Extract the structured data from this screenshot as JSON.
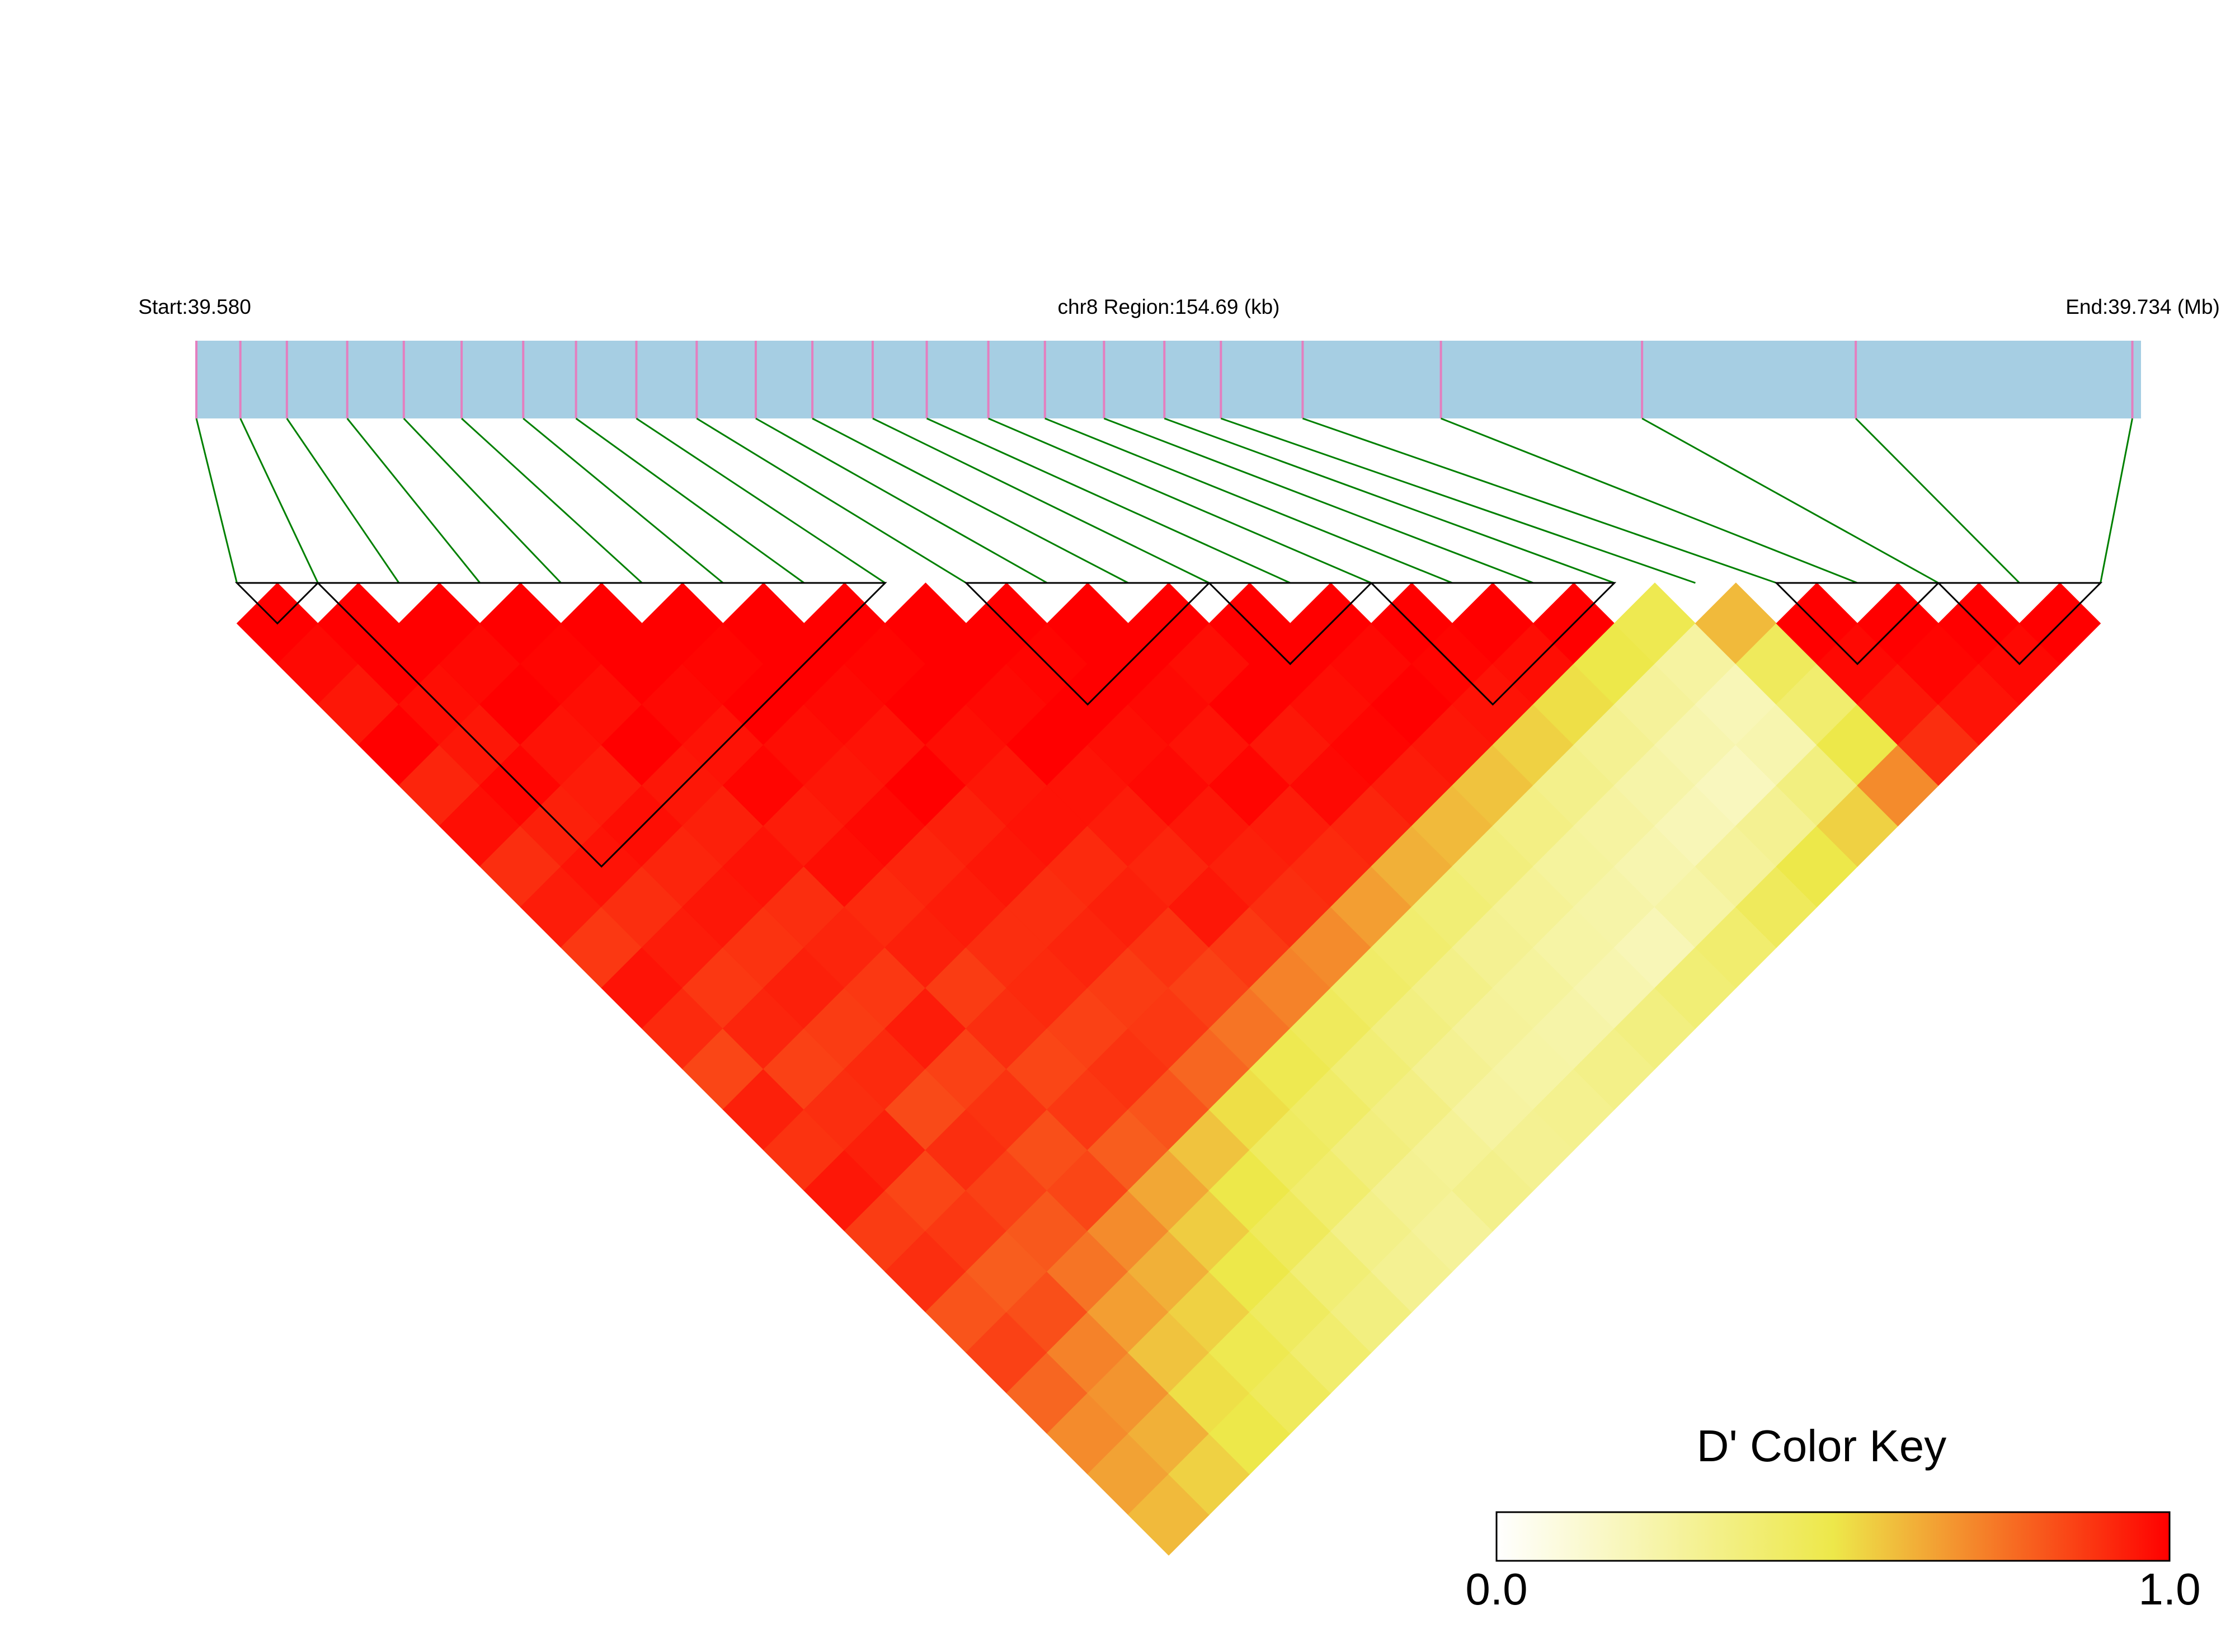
{
  "chart_data": {
    "type": "ld-heatmap",
    "start_label": "Start:39.580",
    "region_label": "chr8 Region:154.69 (kb)",
    "end_label": "End:39.734 (Mb)",
    "xlim": [
      39.58,
      39.73469
    ],
    "positions": [
      39.58,
      39.5835,
      39.5872,
      39.592,
      39.5965,
      39.6011,
      39.606,
      39.6102,
      39.615,
      39.6198,
      39.6245,
      39.629,
      39.6338,
      39.6381,
      39.643,
      39.6475,
      39.6522,
      39.657,
      39.6615,
      39.668,
      39.679,
      39.695,
      39.712,
      39.734
    ],
    "dprime": [
      [
        1,
        0.98,
        0.95,
        1,
        0.92,
        0.97,
        0.9,
        0.94,
        0.88,
        0.96,
        0.91,
        0.85,
        0.93,
        0.89,
        0.95,
        0.87,
        0.9,
        0.82,
        0.86,
        0.78,
        0.7,
        0.65,
        0.6
      ],
      [
        1,
        1,
        0.97,
        0.95,
        0.99,
        0.93,
        0.96,
        0.9,
        0.94,
        0.88,
        0.92,
        0.86,
        0.9,
        0.93,
        0.85,
        0.88,
        0.8,
        0.83,
        0.72,
        0.68,
        0.62,
        0.55
      ],
      [
        1,
        0.98,
        1,
        0.96,
        0.94,
        0.97,
        0.92,
        0.95,
        0.89,
        0.93,
        0.87,
        0.91,
        0.84,
        0.9,
        0.86,
        0.81,
        0.75,
        0.66,
        0.58,
        0.52,
        0.5
      ],
      [
        1,
        0.99,
        0.97,
        1,
        0.95,
        0.93,
        0.96,
        0.9,
        0.92,
        0.88,
        0.94,
        0.86,
        0.89,
        0.83,
        0.85,
        0.7,
        0.62,
        0.55,
        0.48,
        0.45
      ],
      [
        1,
        1,
        0.98,
        0.96,
        0.99,
        0.94,
        0.97,
        0.91,
        0.93,
        0.87,
        0.9,
        0.85,
        0.88,
        0.8,
        0.64,
        0.56,
        0.5,
        0.44,
        0.4
      ],
      [
        1,
        0.99,
        1,
        0.97,
        0.95,
        0.98,
        0.92,
        0.94,
        0.9,
        0.91,
        0.86,
        0.89,
        0.82,
        0.58,
        0.5,
        0.45,
        0.38,
        0.35
      ],
      [
        1,
        1,
        0.98,
        0.96,
        1,
        0.93,
        0.95,
        0.9,
        0.92,
        0.87,
        0.88,
        0.78,
        0.52,
        0.44,
        0.4,
        0.33,
        0.3
      ],
      [
        1,
        0.99,
        1,
        0.97,
        0.95,
        0.96,
        0.91,
        0.93,
        0.89,
        0.86,
        0.75,
        0.48,
        0.42,
        0.36,
        0.3,
        0.28
      ],
      [
        1,
        1,
        0.98,
        1,
        0.96,
        0.94,
        0.92,
        0.95,
        0.88,
        0.72,
        0.45,
        0.38,
        0.34,
        0.29,
        0.32
      ],
      [
        1,
        0.99,
        1,
        0.97,
        0.98,
        0.95,
        0.93,
        0.9,
        0.7,
        0.42,
        0.35,
        0.3,
        0.26,
        0.3
      ],
      [
        1,
        1,
        0.98,
        0.96,
        0.99,
        0.94,
        0.91,
        0.66,
        0.4,
        0.33,
        0.28,
        0.25,
        0.31
      ],
      [
        1,
        0.97,
        1,
        0.95,
        0.98,
        0.92,
        0.62,
        0.38,
        0.3,
        0.27,
        0.24,
        0.33
      ],
      [
        1,
        1,
        0.97,
        0.99,
        0.94,
        0.6,
        0.36,
        0.29,
        0.25,
        0.22,
        0.35
      ],
      [
        1,
        0.98,
        1,
        0.95,
        0.58,
        0.34,
        0.27,
        0.24,
        0.2,
        0.38
      ],
      [
        1,
        0.99,
        0.96,
        0.55,
        0.32,
        0.26,
        0.22,
        0.25,
        0.4
      ],
      [
        1,
        0.97,
        0.52,
        0.3,
        0.24,
        0.2,
        0.28,
        0.45
      ],
      [
        1,
        0.5,
        0.28,
        0.22,
        0.18,
        0.3,
        0.5
      ],
      [
        0.48,
        0.26,
        0.2,
        0.22,
        0.35,
        0.55
      ],
      [
        0.6,
        0.45,
        0.4,
        0.5,
        0.7
      ],
      [
        1,
        0.98,
        0.95,
        0.9
      ],
      [
        1,
        0.99,
        0.96
      ],
      [
        1,
        0.98
      ],
      [
        1
      ]
    ],
    "blocks": [
      [
        0,
        1
      ],
      [
        1,
        8
      ],
      [
        9,
        12
      ],
      [
        12,
        14
      ],
      [
        14,
        17
      ],
      [
        19,
        21
      ],
      [
        21,
        23
      ]
    ],
    "bar_color": "#a6cee3",
    "snp_color": "#e47ebf",
    "link_color": "#008000",
    "color_stops": [
      "#ffffff",
      "#ede84a",
      "#ff0000"
    ],
    "key_title": "D' Color Key",
    "key_ticks": [
      {
        "value": 0,
        "label": "0.0"
      },
      {
        "value": 1,
        "label": "1.0"
      }
    ]
  }
}
